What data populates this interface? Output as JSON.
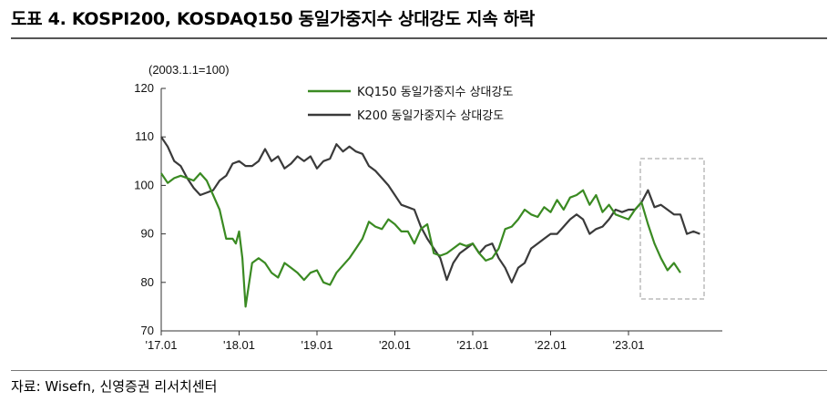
{
  "header": {
    "title": "도표 4. KOSPI200, KOSDAQ150 동일가중지수 상대강도 지속 하락"
  },
  "footer": {
    "source": "자료: Wisefn, 신영증권 리서치센터"
  },
  "chart_data": {
    "type": "line",
    "title": "도표 4. KOSPI200, KOSDAQ150 동일가중지수 상대강도 지속 하락",
    "unit_label": "(2003.1.1=100)",
    "ylim": [
      70,
      120
    ],
    "yticks": [
      70,
      80,
      90,
      100,
      110,
      120
    ],
    "xticks": [
      "'17.01",
      "'18.01",
      "'19.01",
      "'20.01",
      "'21.01",
      "'22.01",
      "'23.01"
    ],
    "grid": false,
    "legend_position": "top-center",
    "annotation": "dashed box around 2023 period",
    "series": [
      {
        "name": "KQ150 동일가중지수 상대강도",
        "color": "#3a8a22",
        "t": [
          0,
          1,
          2,
          3,
          4,
          5,
          6,
          7,
          8,
          9,
          10,
          11,
          11.5,
          12,
          12.5,
          13,
          14,
          15,
          16,
          17,
          18,
          19,
          20,
          21,
          22,
          23,
          24,
          25,
          26,
          27,
          28,
          29,
          30,
          31,
          32,
          33,
          34,
          35,
          36,
          37,
          38,
          39,
          40,
          41,
          42,
          43,
          44,
          45,
          46,
          47,
          48,
          49,
          50,
          51,
          52,
          53,
          54,
          55,
          56,
          57,
          58,
          59,
          60,
          61,
          62,
          63,
          64,
          65,
          66,
          67,
          68,
          69,
          70,
          71,
          72,
          73,
          74,
          75,
          76,
          77,
          78,
          79,
          80
        ],
        "values": [
          102.5,
          100.5,
          101.5,
          102,
          101.5,
          101,
          102.5,
          101,
          98,
          95,
          89,
          89,
          88,
          90.5,
          85,
          75,
          84,
          85,
          84,
          82,
          81,
          84,
          83,
          82,
          80.5,
          82,
          82.5,
          80,
          79.5,
          82,
          83.5,
          85,
          87,
          89,
          92.5,
          91.5,
          91,
          93,
          92,
          90.5,
          90.5,
          88,
          91,
          92,
          86,
          85.5,
          86,
          87,
          88,
          87.5,
          88,
          86,
          84.5,
          85,
          87,
          91,
          91.5,
          93,
          95,
          94,
          93.5,
          95.5,
          94.5,
          97,
          95,
          97.5,
          98,
          99,
          96,
          98,
          94.5,
          96,
          94,
          93.5,
          93,
          95,
          96.5,
          92,
          88,
          85,
          82.5,
          84,
          82
        ]
      },
      {
        "name": "K200 동일가중지수 상대강도",
        "color": "#3a3a3a",
        "t": [
          0,
          1,
          2,
          3,
          4,
          5,
          6,
          7,
          8,
          9,
          10,
          11,
          12,
          13,
          14,
          15,
          16,
          17,
          18,
          19,
          20,
          21,
          22,
          23,
          24,
          25,
          26,
          27,
          28,
          29,
          30,
          31,
          32,
          33,
          34,
          35,
          36,
          37,
          38,
          39,
          40,
          41,
          42,
          43,
          44,
          45,
          46,
          47,
          48,
          49,
          50,
          51,
          52,
          53,
          54,
          55,
          56,
          57,
          58,
          59,
          60,
          61,
          62,
          63,
          64,
          65,
          66,
          67,
          68,
          69,
          70,
          71,
          72,
          73,
          74,
          75,
          76,
          77,
          78,
          79,
          80,
          81,
          82,
          83
        ],
        "values": [
          110,
          108,
          105,
          104,
          101.5,
          99.5,
          98,
          98.5,
          99,
          101,
          102,
          104.5,
          105,
          104,
          104,
          105,
          107.5,
          105,
          106,
          103.5,
          104.5,
          106,
          105,
          106,
          103.5,
          105,
          105.5,
          108.5,
          107,
          108,
          107,
          106.5,
          104,
          103,
          101.5,
          100,
          98,
          96,
          95.5,
          95,
          91.5,
          89,
          87,
          85,
          80.5,
          84,
          86,
          87,
          88,
          86,
          87.5,
          88,
          85,
          83,
          80,
          83,
          84,
          87,
          88,
          89,
          90,
          90,
          91.5,
          93,
          94,
          93,
          90,
          91,
          91.5,
          93,
          95,
          94.5,
          95,
          95,
          96.5,
          99,
          95.5,
          96,
          95,
          94,
          94,
          90,
          90.5,
          90
        ]
      }
    ]
  }
}
